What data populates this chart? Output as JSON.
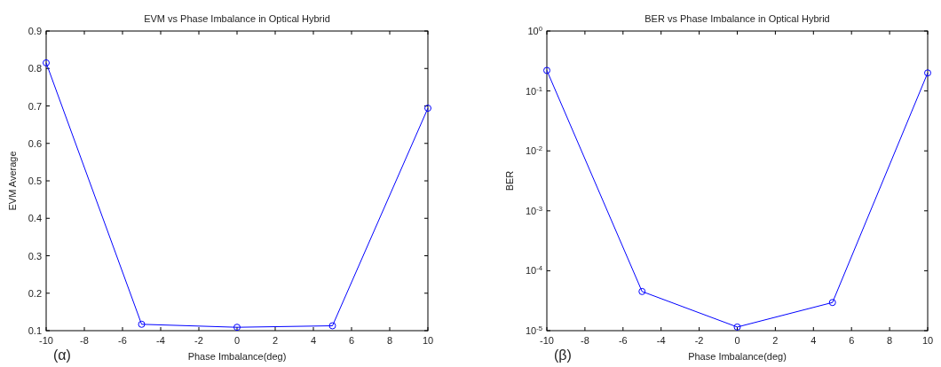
{
  "chart_data": [
    {
      "type": "line",
      "title": "EVM vs Phase Imbalance in Optical Hybrid",
      "xlabel": "Phase Imbalance(deg)",
      "ylabel": "EVM Average",
      "annotations": [
        "(α)"
      ],
      "x": [
        -10,
        -5,
        0,
        5,
        10
      ],
      "series": [
        {
          "color": "#0000ff",
          "values": [
            0.815,
            0.117,
            0.109,
            0.113,
            0.694
          ]
        }
      ],
      "xlim": [
        -10,
        10
      ],
      "xticks": [
        -10,
        -8,
        -6,
        -4,
        -2,
        0,
        2,
        4,
        6,
        8,
        10
      ],
      "ylim": [
        0.1,
        0.9
      ],
      "yticks": [
        0.1,
        0.2,
        0.3,
        0.4,
        0.5,
        0.6,
        0.7,
        0.8,
        0.9
      ],
      "grid": false,
      "marker": "circle",
      "line_style": "solid"
    },
    {
      "type": "line",
      "title": "BER vs Phase Imbalance in Optical Hybrid",
      "xlabel": "Phase Imbalance(deg)",
      "ylabel": "BER",
      "annotations": [
        "(β)"
      ],
      "x": [
        -10,
        -5,
        0,
        5,
        10
      ],
      "series": [
        {
          "color": "#0000ff",
          "values": [
            0.22,
            4.5e-05,
            1.15e-05,
            2.95e-05,
            0.2
          ]
        }
      ],
      "xlim": [
        -10,
        10
      ],
      "xticks": [
        -10,
        -8,
        -6,
        -4,
        -2,
        0,
        2,
        4,
        6,
        8,
        10
      ],
      "ylim": [
        1e-05,
        1
      ],
      "yticks": [
        {
          "value": 1e-05,
          "label": "10$^{-5}$"
        },
        {
          "value": 0.0001,
          "label": "10$^{-4}$"
        },
        {
          "value": 0.001,
          "label": "10$^{-3}$"
        },
        {
          "value": 0.01,
          "label": "10$^{-2}$"
        },
        {
          "value": 0.1,
          "label": "10$^{-1}$"
        },
        {
          "value": 1,
          "label": "10$^{0}$"
        }
      ],
      "log": true,
      "grid": false,
      "marker": "circle",
      "line_style": "solid"
    }
  ]
}
